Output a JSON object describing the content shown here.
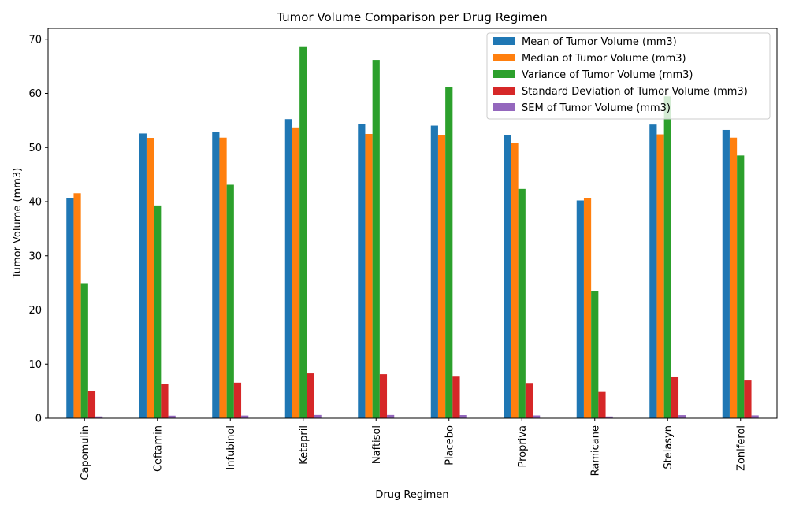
{
  "chart_data": {
    "type": "bar",
    "title": "Tumor Volume Comparison per Drug Regimen",
    "xlabel": "Drug Regimen",
    "ylabel": "Tumor Volume (mm3)",
    "ylim": [
      0,
      72
    ],
    "yticks": [
      0,
      10,
      20,
      30,
      40,
      50,
      60,
      70
    ],
    "grid": false,
    "legend_position": "top-right",
    "categories": [
      "Capomulin",
      "Ceftamin",
      "Infubinol",
      "Ketapril",
      "Naftisol",
      "Placebo",
      "Propriva",
      "Ramicane",
      "Stelasyn",
      "Zoniferol"
    ],
    "series": [
      {
        "name": "Mean of Tumor Volume (mm3)",
        "color": "#1f77b4",
        "values": [
          40.68,
          52.59,
          52.88,
          55.24,
          54.33,
          54.03,
          52.32,
          40.22,
          54.23,
          53.24
        ]
      },
      {
        "name": "Median of Tumor Volume (mm3)",
        "color": "#ff7f0e",
        "values": [
          41.56,
          51.78,
          51.82,
          53.7,
          52.51,
          52.29,
          50.85,
          40.67,
          52.43,
          51.82
        ]
      },
      {
        "name": "Variance of Tumor Volume (mm3)",
        "color": "#2ca02c",
        "values": [
          24.95,
          39.29,
          43.13,
          68.55,
          66.17,
          61.17,
          42.35,
          23.49,
          59.45,
          48.53
        ]
      },
      {
        "name": "Standard Deviation of Tumor Volume (mm3)",
        "color": "#d62728",
        "values": [
          4.99,
          6.27,
          6.57,
          8.28,
          8.13,
          7.82,
          6.51,
          4.85,
          7.71,
          6.97
        ]
      },
      {
        "name": "SEM of Tumor Volume (mm3)",
        "color": "#9467bd",
        "values": [
          0.33,
          0.47,
          0.49,
          0.6,
          0.6,
          0.58,
          0.51,
          0.32,
          0.57,
          0.52
        ]
      }
    ]
  }
}
